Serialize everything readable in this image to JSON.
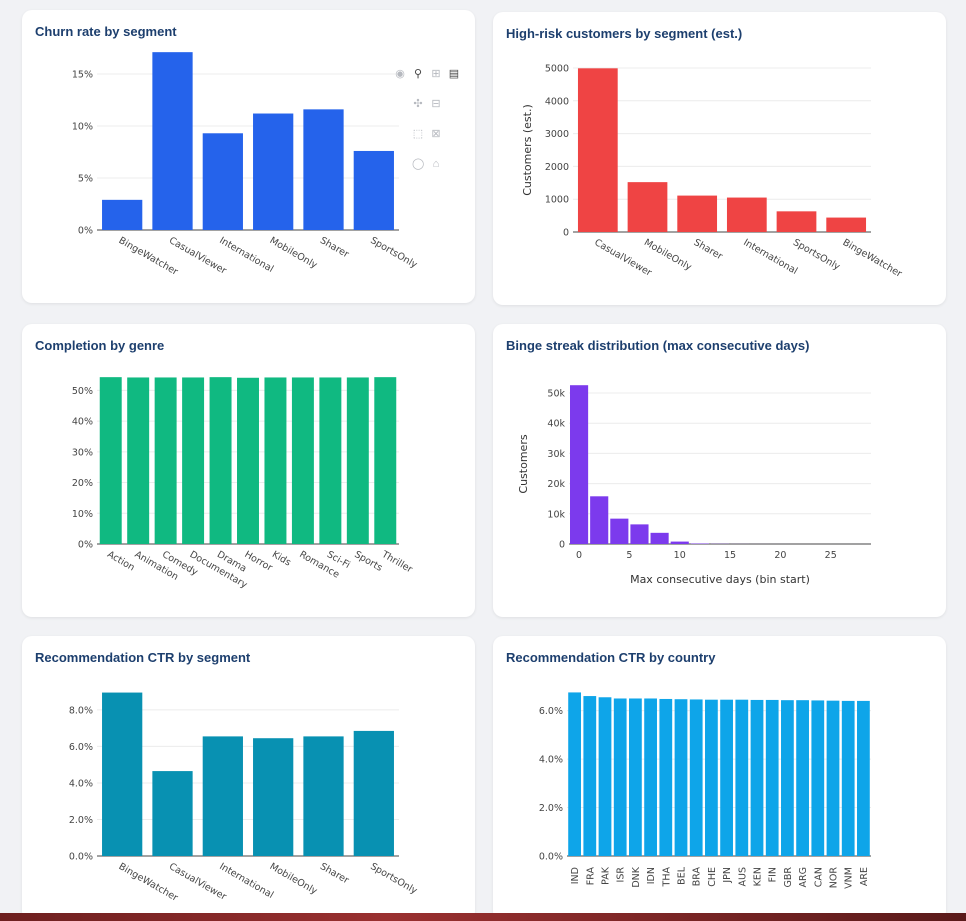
{
  "chart_data": [
    {
      "type": "bar",
      "title": "Churn rate by segment",
      "categories": [
        "BingeWatcher",
        "CasualViewer",
        "International",
        "MobileOnly",
        "Sharer",
        "SportsOnly"
      ],
      "values": [
        0.029,
        0.171,
        0.093,
        0.112,
        0.116,
        0.076
      ],
      "ylim": [
        0,
        0.175
      ],
      "yticks": [
        0,
        0.05,
        0.1,
        0.15
      ],
      "ytick_labels": [
        "0%",
        "5%",
        "10%",
        "15%"
      ],
      "color": "#2563eb",
      "xlabel": "",
      "ylabel": "",
      "grid": true
    },
    {
      "type": "bar",
      "title": "High-risk customers by segment (est.)",
      "categories": [
        "CasualViewer",
        "MobileOnly",
        "Sharer",
        "International",
        "SportsOnly",
        "BingeWatcher"
      ],
      "values": [
        4990,
        1520,
        1110,
        1050,
        630,
        440
      ],
      "ylim": [
        0,
        5000
      ],
      "yticks": [
        0,
        1000,
        2000,
        3000,
        4000,
        5000
      ],
      "ytick_labels": [
        "0",
        "1000",
        "2000",
        "3000",
        "4000",
        "5000"
      ],
      "color": "#ef4444",
      "xlabel": "",
      "ylabel": "Customers (est.)",
      "grid": true
    },
    {
      "type": "bar",
      "title": "Completion by genre",
      "categories": [
        "Action",
        "Animation",
        "Comedy",
        "Documentary",
        "Drama",
        "Horror",
        "Kids",
        "Romance",
        "Sci-Fi",
        "Sports",
        "Thriller"
      ],
      "values": [
        0.543,
        0.542,
        0.542,
        0.542,
        0.543,
        0.541,
        0.542,
        0.542,
        0.542,
        0.542,
        0.543
      ],
      "ylim": [
        0,
        0.55
      ],
      "yticks": [
        0,
        0.1,
        0.2,
        0.3,
        0.4,
        0.5
      ],
      "ytick_labels": [
        "0%",
        "10%",
        "20%",
        "30%",
        "40%",
        "50%"
      ],
      "color": "#10b981",
      "xlabel": "",
      "ylabel": "",
      "grid": true
    },
    {
      "type": "bar",
      "title": "Binge streak distribution (max consecutive days)",
      "x": [
        0,
        2,
        4,
        6,
        8,
        10,
        12,
        14,
        16,
        18,
        20,
        22,
        24,
        26,
        28
      ],
      "values": [
        52600,
        15800,
        8400,
        6500,
        3700,
        800,
        150,
        60,
        20,
        10,
        5,
        3,
        2,
        1,
        1
      ],
      "bin_width": 2,
      "xlim": [
        -1,
        29
      ],
      "ylim": [
        0,
        53000
      ],
      "xticks": [
        0,
        5,
        10,
        15,
        20,
        25
      ],
      "yticks": [
        0,
        10000,
        20000,
        30000,
        40000,
        50000
      ],
      "ytick_labels": [
        "0",
        "10k",
        "20k",
        "30k",
        "40k",
        "50k"
      ],
      "color": "#7c3aed",
      "xlabel": "Max consecutive days (bin start)",
      "ylabel": "Customers",
      "grid": true
    },
    {
      "type": "bar",
      "title": "Recommendation CTR by segment",
      "categories": [
        "BingeWatcher",
        "CasualViewer",
        "International",
        "MobileOnly",
        "Sharer",
        "SportsOnly"
      ],
      "values": [
        0.0895,
        0.0465,
        0.0655,
        0.0645,
        0.0655,
        0.0685
      ],
      "ylim": [
        0,
        0.092
      ],
      "yticks": [
        0,
        0.02,
        0.04,
        0.06,
        0.08
      ],
      "ytick_labels": [
        "0.0%",
        "2.0%",
        "4.0%",
        "6.0%",
        "8.0%"
      ],
      "color": "#0891b2",
      "xlabel": "",
      "ylabel": "",
      "grid": true
    },
    {
      "type": "bar",
      "title": "Recommendation CTR by country",
      "categories": [
        "IND",
        "FRA",
        "PAK",
        "ISR",
        "DNK",
        "IDN",
        "THA",
        "BEL",
        "BRA",
        "CHE",
        "JPN",
        "AUS",
        "KEN",
        "FIN",
        "GBR",
        "ARG",
        "CAN",
        "NOR",
        "VNM",
        "ARE"
      ],
      "values": [
        0.0675,
        0.066,
        0.0655,
        0.065,
        0.065,
        0.065,
        0.0648,
        0.0647,
        0.0646,
        0.0645,
        0.0645,
        0.0645,
        0.0644,
        0.0644,
        0.0643,
        0.0643,
        0.0642,
        0.0641,
        0.064,
        0.064
      ],
      "ylim": [
        0,
        0.0685
      ],
      "yticks": [
        0,
        0.02,
        0.04,
        0.06
      ],
      "ytick_labels": [
        "0.0%",
        "2.0%",
        "4.0%",
        "6.0%"
      ],
      "color": "#0ea5e9",
      "xlabel": "",
      "ylabel": "",
      "grid": true
    }
  ],
  "modebar": {
    "icons": [
      "camera-icon",
      "zoom-icon",
      "zoom-in-icon",
      "bar-icon",
      "pan-icon",
      "zoom-out-icon",
      "box-select-icon",
      "autoscale-icon",
      "lasso-icon",
      "reset-axes-icon"
    ]
  }
}
